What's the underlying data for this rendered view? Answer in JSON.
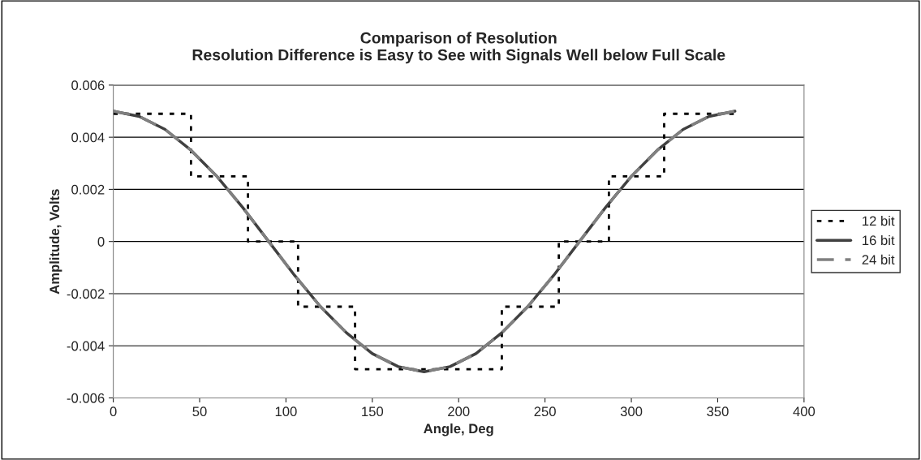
{
  "chart_data": {
    "type": "line",
    "title": "Comparison of Resolution\nResolution Difference is Easy to See with Signals Well below Full Scale",
    "xlabel": "Angle, Deg",
    "ylabel": "Amplitude, Volts",
    "xlim": [
      0,
      400
    ],
    "xticks": [
      0,
      50,
      100,
      150,
      200,
      250,
      300,
      350,
      400
    ],
    "ylim": [
      -0.006,
      0.006
    ],
    "yticks": [
      {
        "value": -0.006,
        "label": "-0.006"
      },
      {
        "value": -0.004,
        "label": "-0.004"
      },
      {
        "value": -0.002,
        "label": "-0.002"
      },
      {
        "value": 0,
        "label": "0"
      },
      {
        "value": 0.002,
        "label": "0.002"
      },
      {
        "value": 0.004,
        "label": "0.004"
      },
      {
        "value": 0.006,
        "label": "0.006"
      }
    ],
    "grid": "y",
    "legend": "right",
    "marker": "none",
    "series": [
      {
        "name": "12 bit",
        "type": "step",
        "color": "#000000",
        "line_style": "dotted",
        "x": [
          0,
          45,
          78,
          107,
          140,
          225,
          258,
          287,
          319,
          360
        ],
        "values": [
          0.0049,
          0.0025,
          0,
          -0.0025,
          -0.0049,
          -0.0025,
          0,
          0.0025,
          0.0049,
          0.0049
        ]
      },
      {
        "name": "16 bit",
        "color": "#404040",
        "line_style": "solid",
        "x": [
          0,
          15,
          30,
          45,
          60,
          75,
          90,
          105,
          120,
          135,
          150,
          165,
          180,
          195,
          210,
          225,
          240,
          255,
          270,
          285,
          300,
          315,
          330,
          345,
          360
        ],
        "values": [
          0.005,
          0.0048,
          0.0043,
          0.0035,
          0.0025,
          0.0013,
          0,
          -0.0013,
          -0.0025,
          -0.0035,
          -0.0043,
          -0.0048,
          -0.005,
          -0.0048,
          -0.0043,
          -0.0035,
          -0.0025,
          -0.0013,
          0,
          0.0013,
          0.0025,
          0.0035,
          0.0043,
          0.0048,
          0.005
        ]
      },
      {
        "name": "24 bit",
        "color": "#808080",
        "line_style": "dashed",
        "x": [
          0,
          15,
          30,
          45,
          60,
          75,
          90,
          105,
          120,
          135,
          150,
          165,
          180,
          195,
          210,
          225,
          240,
          255,
          270,
          285,
          300,
          315,
          330,
          345,
          360
        ],
        "values": [
          0.005,
          0.0048,
          0.0043,
          0.0035,
          0.0025,
          0.0013,
          0,
          -0.0013,
          -0.0025,
          -0.0035,
          -0.0043,
          -0.0048,
          -0.005,
          -0.0048,
          -0.0043,
          -0.0035,
          -0.0025,
          -0.0013,
          0,
          0.0013,
          0.0025,
          0.0035,
          0.0043,
          0.0048,
          0.005
        ]
      }
    ]
  }
}
